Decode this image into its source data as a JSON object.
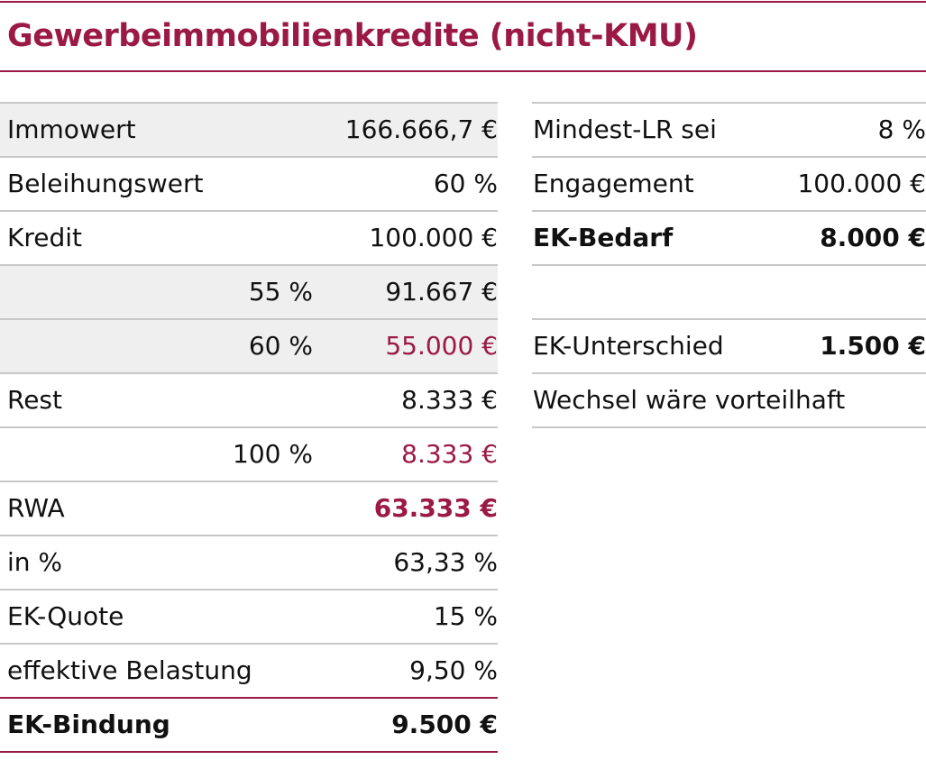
{
  "title": "Gewerbeimmobilienkredite (nicht-KMU)",
  "colors": {
    "accent": "#9b1a45",
    "row_highlight": "#efefef",
    "rule": "#c8c8c8"
  },
  "left": [
    {
      "label": "Immowert",
      "mid": "",
      "value": "166.666,7 €"
    },
    {
      "label": "Beleihungswert",
      "mid": "",
      "value": "60 %"
    },
    {
      "label": "Kredit",
      "mid": "",
      "value": "100.000 €"
    },
    {
      "label": "",
      "mid": "55 %",
      "value": "91.667 €"
    },
    {
      "label": "",
      "mid": "60 %",
      "value": "55.000 €"
    },
    {
      "label": "Rest",
      "mid": "",
      "value": "8.333 €"
    },
    {
      "label": "",
      "mid": "100 %",
      "value": "8.333 €"
    },
    {
      "label": "RWA",
      "mid": "",
      "value": "63.333 €"
    },
    {
      "label": "in %",
      "mid": "",
      "value": "63,33 %"
    },
    {
      "label": "EK-Quote",
      "mid": "",
      "value": "15 %"
    },
    {
      "label": "effektive Belastung",
      "mid": "",
      "value": "9,50 %"
    },
    {
      "label": "EK-Bindung",
      "mid": "",
      "value": "9.500 €"
    }
  ],
  "right": [
    {
      "label": "Mindest-LR sei",
      "value": "8 %"
    },
    {
      "label": "Engagement",
      "value": "100.000 €"
    },
    {
      "label": "EK-Bedarf",
      "value": "8.000 €"
    },
    {
      "label": "",
      "value": ""
    },
    {
      "label": "EK-Unterschied",
      "value": "1.500 €"
    },
    {
      "label": "Wechsel wäre vorteilhaft",
      "value": ""
    }
  ]
}
